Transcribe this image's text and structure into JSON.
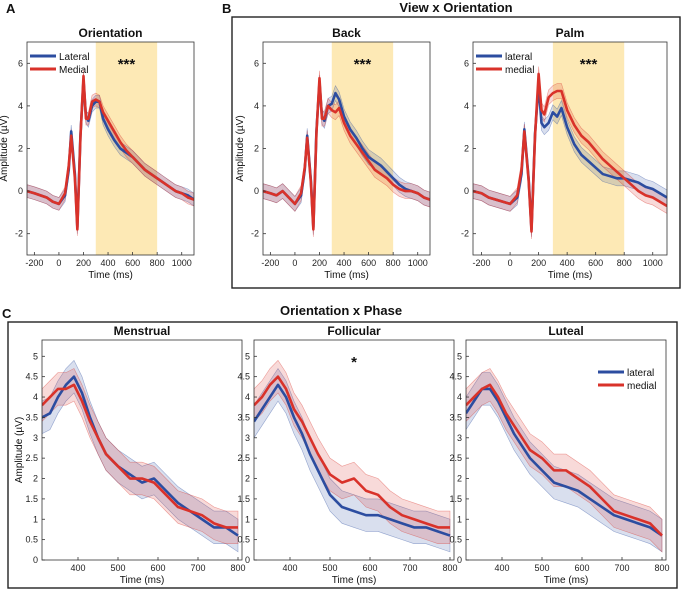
{
  "figure": {
    "panel_letters": [
      "A",
      "B",
      "C"
    ],
    "group_titles": {
      "B": "View x Orientation",
      "C": "Orientation x Phase"
    }
  },
  "colors": {
    "lateral": "#2c4da0",
    "medial": "#d9322a",
    "highlight": "#fde9b5"
  },
  "chart_data": [
    {
      "type": "line",
      "id": "A",
      "title": "Orientation",
      "xlabel": "Time (ms)",
      "ylabel": "Amplitude (µV)",
      "xlim": [
        -260,
        1100
      ],
      "ylim": [
        -3,
        7
      ],
      "xticks": [
        -200,
        0,
        200,
        400,
        600,
        800,
        1000
      ],
      "yticks": [
        -2,
        0,
        2,
        4,
        6
      ],
      "highlight": [
        300,
        800
      ],
      "significance": "***",
      "legend": [
        "Lateral",
        "Medial"
      ],
      "x": [
        -260,
        -200,
        -150,
        -100,
        -50,
        0,
        50,
        80,
        100,
        130,
        150,
        175,
        200,
        220,
        240,
        270,
        300,
        330,
        360,
        400,
        450,
        500,
        550,
        600,
        650,
        700,
        750,
        800,
        850,
        900,
        950,
        1000,
        1050,
        1100
      ],
      "series": [
        {
          "name": "Lateral",
          "values": [
            0.0,
            -0.1,
            -0.2,
            -0.3,
            -0.5,
            -0.6,
            -0.2,
            1.0,
            2.8,
            0.8,
            -1.7,
            2.6,
            5.2,
            3.5,
            3.3,
            4.0,
            4.2,
            4.2,
            3.4,
            2.9,
            2.4,
            2.0,
            1.8,
            1.6,
            1.3,
            1.0,
            0.8,
            0.6,
            0.4,
            0.2,
            0.0,
            -0.1,
            -0.2,
            -0.4
          ],
          "band": 0.3
        },
        {
          "name": "Medial",
          "values": [
            0.0,
            -0.1,
            -0.2,
            -0.3,
            -0.5,
            -0.6,
            -0.1,
            1.2,
            2.6,
            0.6,
            -1.8,
            2.5,
            5.4,
            3.4,
            3.4,
            4.2,
            4.3,
            4.2,
            3.7,
            3.3,
            2.8,
            2.3,
            1.9,
            1.6,
            1.3,
            1.0,
            0.8,
            0.6,
            0.4,
            0.2,
            0.0,
            -0.1,
            -0.3,
            -0.4
          ],
          "band": 0.3
        }
      ]
    },
    {
      "type": "line",
      "id": "B1",
      "title": "Back",
      "xlabel": "Time (ms)",
      "ylabel": "Amplitude (µV)",
      "xlim": [
        -260,
        1100
      ],
      "ylim": [
        -3,
        7
      ],
      "xticks": [
        -200,
        0,
        200,
        400,
        600,
        800,
        1000
      ],
      "yticks": [
        -2,
        0,
        2,
        4,
        6
      ],
      "highlight": [
        300,
        800
      ],
      "significance": "***",
      "x": [
        -260,
        -200,
        -150,
        -100,
        -50,
        0,
        50,
        80,
        100,
        130,
        150,
        175,
        200,
        220,
        240,
        270,
        300,
        330,
        360,
        400,
        450,
        500,
        550,
        600,
        650,
        700,
        750,
        800,
        850,
        900,
        950,
        1000,
        1050,
        1100
      ],
      "series": [
        {
          "name": "lateral",
          "values": [
            0.0,
            -0.1,
            -0.2,
            0.0,
            -0.3,
            -0.6,
            -0.2,
            1.0,
            2.6,
            0.5,
            -1.7,
            2.8,
            5.1,
            3.5,
            3.3,
            4.0,
            4.1,
            4.6,
            4.3,
            3.5,
            2.9,
            2.5,
            2.0,
            1.6,
            1.4,
            1.2,
            0.9,
            0.6,
            0.3,
            0.1,
            0.0,
            -0.1,
            -0.3,
            -0.4
          ],
          "band": 0.35
        },
        {
          "name": "medial",
          "values": [
            0.0,
            -0.1,
            -0.2,
            0.0,
            -0.3,
            -0.6,
            -0.1,
            1.1,
            2.5,
            0.4,
            -1.8,
            2.7,
            5.3,
            3.4,
            3.4,
            4.0,
            3.8,
            3.7,
            3.9,
            3.2,
            2.6,
            2.2,
            1.8,
            1.4,
            1.0,
            0.8,
            0.6,
            0.3,
            0.1,
            0.0,
            0.0,
            -0.1,
            -0.3,
            -0.4
          ],
          "band": 0.35
        }
      ]
    },
    {
      "type": "line",
      "id": "B2",
      "title": "Palm",
      "xlabel": "Time (ms)",
      "ylabel": "",
      "xlim": [
        -260,
        1100
      ],
      "ylim": [
        -3,
        7
      ],
      "xticks": [
        -200,
        0,
        200,
        400,
        600,
        800,
        1000
      ],
      "yticks": [
        -2,
        0,
        2,
        4,
        6
      ],
      "highlight": [
        300,
        800
      ],
      "significance": "***",
      "legend": [
        "lateral",
        "medial"
      ],
      "x": [
        -260,
        -200,
        -150,
        -100,
        -50,
        0,
        50,
        80,
        100,
        130,
        150,
        175,
        200,
        220,
        240,
        270,
        300,
        330,
        360,
        400,
        450,
        500,
        550,
        600,
        650,
        700,
        750,
        800,
        850,
        900,
        950,
        1000,
        1050,
        1100
      ],
      "series": [
        {
          "name": "lateral",
          "values": [
            0.0,
            -0.1,
            -0.3,
            -0.4,
            -0.5,
            -0.6,
            -0.3,
            0.8,
            2.9,
            0.6,
            -1.8,
            2.7,
            5.0,
            3.2,
            3.0,
            3.2,
            3.7,
            3.5,
            3.9,
            3.0,
            2.2,
            1.7,
            1.4,
            1.1,
            0.8,
            0.7,
            0.6,
            0.6,
            0.5,
            0.4,
            0.2,
            0.1,
            -0.1,
            -0.3
          ],
          "band": 0.35
        },
        {
          "name": "medial",
          "values": [
            0.0,
            -0.1,
            -0.3,
            -0.4,
            -0.5,
            -0.6,
            -0.2,
            1.0,
            2.8,
            0.5,
            -1.9,
            2.6,
            5.5,
            3.8,
            3.6,
            4.4,
            4.6,
            4.7,
            4.7,
            3.8,
            3.1,
            2.6,
            2.3,
            1.9,
            1.5,
            1.2,
            0.9,
            0.6,
            0.3,
            0.0,
            -0.2,
            -0.3,
            -0.5,
            -0.7
          ],
          "band": 0.35
        }
      ]
    },
    {
      "type": "line",
      "id": "C1",
      "title": "Menstrual",
      "xlabel": "Time (ms)",
      "ylabel": "Amplitude (µV)",
      "xlim": [
        310,
        810
      ],
      "ylim": [
        0,
        5.4
      ],
      "xticks": [
        400,
        500,
        600,
        700,
        800
      ],
      "yticks": [
        0,
        0.5,
        1,
        1.5,
        2,
        2.5,
        3,
        3.5,
        4,
        4.5,
        5
      ],
      "x": [
        310,
        330,
        350,
        370,
        390,
        410,
        430,
        450,
        470,
        500,
        530,
        560,
        590,
        620,
        650,
        680,
        710,
        740,
        770,
        800
      ],
      "series": [
        {
          "name": "lateral",
          "values": [
            3.5,
            3.6,
            4.0,
            4.3,
            4.5,
            4.1,
            3.5,
            3.0,
            2.6,
            2.3,
            2.1,
            1.9,
            2.0,
            1.7,
            1.4,
            1.2,
            1.0,
            0.8,
            0.8,
            0.6
          ],
          "band": 0.4
        },
        {
          "name": "medial",
          "values": [
            3.8,
            4.0,
            4.2,
            4.2,
            4.3,
            3.9,
            3.4,
            3.0,
            2.6,
            2.3,
            2.0,
            2.0,
            1.9,
            1.6,
            1.3,
            1.2,
            1.1,
            0.9,
            0.8,
            0.8
          ],
          "band": 0.4
        }
      ]
    },
    {
      "type": "line",
      "id": "C2",
      "title": "Follicular",
      "xlabel": "Time (ms)",
      "ylabel": "",
      "xlim": [
        310,
        810
      ],
      "ylim": [
        0,
        5.4
      ],
      "xticks": [
        400,
        500,
        600,
        700,
        800
      ],
      "yticks": [
        0,
        0.5,
        1,
        1.5,
        2,
        2.5,
        3,
        3.5,
        4,
        4.5,
        5
      ],
      "significance": "*",
      "x": [
        310,
        330,
        350,
        370,
        390,
        410,
        430,
        450,
        470,
        500,
        530,
        560,
        590,
        620,
        650,
        680,
        710,
        740,
        770,
        800
      ],
      "series": [
        {
          "name": "lateral",
          "values": [
            3.4,
            3.7,
            4.0,
            4.3,
            4.0,
            3.5,
            3.1,
            2.6,
            2.2,
            1.6,
            1.3,
            1.2,
            1.1,
            1.1,
            1.0,
            0.9,
            0.8,
            0.8,
            0.7,
            0.6
          ],
          "band": 0.4
        },
        {
          "name": "medial",
          "values": [
            3.8,
            4.0,
            4.3,
            4.5,
            4.2,
            3.7,
            3.4,
            3.0,
            2.6,
            2.1,
            1.9,
            2.0,
            1.7,
            1.6,
            1.3,
            1.1,
            1.0,
            0.9,
            0.8,
            0.8
          ],
          "band": 0.4
        }
      ]
    },
    {
      "type": "line",
      "id": "C3",
      "title": "Luteal",
      "xlabel": "Time (ms)",
      "ylabel": "",
      "xlim": [
        310,
        810
      ],
      "ylim": [
        0,
        5.4
      ],
      "xticks": [
        400,
        500,
        600,
        700,
        800
      ],
      "yticks": [
        0,
        0.5,
        1,
        1.5,
        2,
        2.5,
        3,
        3.5,
        4,
        4.5,
        5
      ],
      "legend": [
        "lateral",
        "medial"
      ],
      "x": [
        310,
        330,
        350,
        370,
        390,
        410,
        430,
        450,
        470,
        500,
        530,
        560,
        590,
        620,
        650,
        680,
        710,
        740,
        770,
        800
      ],
      "series": [
        {
          "name": "lateral",
          "values": [
            3.6,
            3.9,
            4.2,
            4.2,
            3.9,
            3.5,
            3.1,
            2.8,
            2.5,
            2.2,
            1.9,
            1.8,
            1.7,
            1.5,
            1.3,
            1.1,
            1.0,
            0.9,
            0.8,
            0.6
          ],
          "band": 0.4
        },
        {
          "name": "medial",
          "values": [
            3.8,
            4.0,
            4.2,
            4.3,
            4.0,
            3.6,
            3.3,
            3.0,
            2.7,
            2.5,
            2.2,
            2.2,
            2.0,
            1.8,
            1.5,
            1.2,
            1.1,
            1.0,
            0.9,
            0.6
          ],
          "band": 0.4
        }
      ]
    }
  ]
}
